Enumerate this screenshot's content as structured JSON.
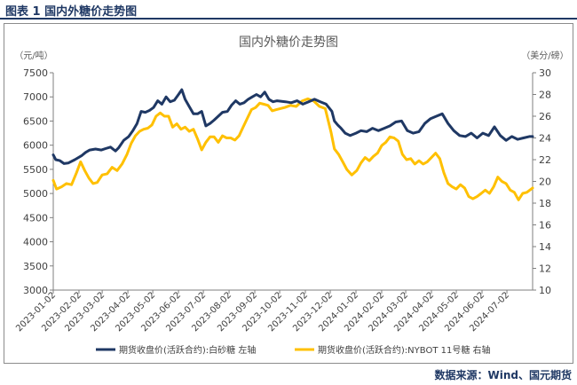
{
  "figure_label": "图表 1  国内外糖价走势图",
  "source": "数据来源：Wind、国元期货",
  "chart_data": {
    "type": "line",
    "title": "国内外糖价走势图",
    "left_axis": {
      "unit": "（元/吨）",
      "min": 3000,
      "max": 7500,
      "ticks": [
        3000,
        3500,
        4000,
        4500,
        5000,
        5500,
        6000,
        6500,
        7000,
        7500
      ]
    },
    "right_axis": {
      "unit": "（美分/磅）",
      "min": 10,
      "max": 30,
      "ticks": [
        10,
        12,
        14,
        16,
        18,
        20,
        22,
        24,
        26,
        28,
        30
      ]
    },
    "x_ticks": [
      "2023-01-02",
      "2023-02-02",
      "2023-03-02",
      "2023-04-02",
      "2023-05-02",
      "2023-06-02",
      "2023-07-02",
      "2023-08-02",
      "2023-09-02",
      "2023-10-02",
      "2023-11-02",
      "2023-12-02",
      "2024-01-02",
      "2024-02-02",
      "2024-03-02",
      "2024-04-02",
      "2024-05-02",
      "2024-06-02",
      "2024-07-02"
    ],
    "x_range": [
      "2023-01-02",
      "2024-08-02"
    ],
    "legend_position": "bottom",
    "series": [
      {
        "name": "期货收盘价(活跃合约):白砂糖 左轴",
        "axis": "left",
        "color": "#1f3864",
        "points": [
          [
            "2023-01-02",
            5800
          ],
          [
            "2023-01-05",
            5700
          ],
          [
            "2023-01-10",
            5680
          ],
          [
            "2023-01-15",
            5620
          ],
          [
            "2023-01-20",
            5630
          ],
          [
            "2023-01-28",
            5700
          ],
          [
            "2023-02-05",
            5780
          ],
          [
            "2023-02-10",
            5850
          ],
          [
            "2023-02-15",
            5900
          ],
          [
            "2023-02-22",
            5920
          ],
          [
            "2023-03-01",
            5900
          ],
          [
            "2023-03-06",
            5930
          ],
          [
            "2023-03-12",
            5960
          ],
          [
            "2023-03-18",
            5880
          ],
          [
            "2023-03-22",
            5950
          ],
          [
            "2023-03-28",
            6100
          ],
          [
            "2023-04-03",
            6180
          ],
          [
            "2023-04-08",
            6300
          ],
          [
            "2023-04-13",
            6450
          ],
          [
            "2023-04-18",
            6700
          ],
          [
            "2023-04-23",
            6680
          ],
          [
            "2023-04-28",
            6720
          ],
          [
            "2023-05-03",
            6780
          ],
          [
            "2023-05-08",
            6920
          ],
          [
            "2023-05-13",
            6850
          ],
          [
            "2023-05-18",
            7000
          ],
          [
            "2023-05-23",
            6900
          ],
          [
            "2023-05-28",
            6930
          ],
          [
            "2023-06-02",
            7050
          ],
          [
            "2023-06-06",
            7150
          ],
          [
            "2023-06-10",
            6950
          ],
          [
            "2023-06-15",
            6800
          ],
          [
            "2023-06-20",
            6650
          ],
          [
            "2023-06-25",
            6650
          ],
          [
            "2023-06-30",
            6700
          ],
          [
            "2023-07-05",
            6400
          ],
          [
            "2023-07-10",
            6450
          ],
          [
            "2023-07-15",
            6520
          ],
          [
            "2023-07-20",
            6600
          ],
          [
            "2023-07-25",
            6680
          ],
          [
            "2023-07-31",
            6700
          ],
          [
            "2023-08-05",
            6830
          ],
          [
            "2023-08-10",
            6920
          ],
          [
            "2023-08-15",
            6850
          ],
          [
            "2023-08-20",
            6880
          ],
          [
            "2023-08-25",
            6950
          ],
          [
            "2023-08-30",
            7000
          ],
          [
            "2023-09-04",
            7050
          ],
          [
            "2023-09-09",
            7000
          ],
          [
            "2023-09-14",
            7100
          ],
          [
            "2023-09-19",
            6950
          ],
          [
            "2023-09-24",
            6900
          ],
          [
            "2023-09-29",
            6920
          ],
          [
            "2023-10-09",
            6900
          ],
          [
            "2023-10-16",
            6880
          ],
          [
            "2023-10-23",
            6920
          ],
          [
            "2023-10-30",
            6850
          ],
          [
            "2023-11-06",
            6900
          ],
          [
            "2023-11-13",
            6950
          ],
          [
            "2023-11-20",
            6900
          ],
          [
            "2023-11-27",
            6850
          ],
          [
            "2023-12-04",
            6700
          ],
          [
            "2023-12-07",
            6500
          ],
          [
            "2023-12-11",
            6420
          ],
          [
            "2023-12-15",
            6350
          ],
          [
            "2023-12-20",
            6250
          ],
          [
            "2023-12-26",
            6200
          ],
          [
            "2024-01-02",
            6250
          ],
          [
            "2024-01-08",
            6300
          ],
          [
            "2024-01-15",
            6280
          ],
          [
            "2024-01-22",
            6350
          ],
          [
            "2024-01-29",
            6300
          ],
          [
            "2024-02-05",
            6350
          ],
          [
            "2024-02-12",
            6400
          ],
          [
            "2024-02-19",
            6480
          ],
          [
            "2024-02-26",
            6500
          ],
          [
            "2024-03-04",
            6300
          ],
          [
            "2024-03-11",
            6250
          ],
          [
            "2024-03-18",
            6280
          ],
          [
            "2024-03-25",
            6450
          ],
          [
            "2024-04-01",
            6550
          ],
          [
            "2024-04-08",
            6600
          ],
          [
            "2024-04-15",
            6650
          ],
          [
            "2024-04-22",
            6450
          ],
          [
            "2024-04-29",
            6300
          ],
          [
            "2024-05-06",
            6200
          ],
          [
            "2024-05-13",
            6180
          ],
          [
            "2024-05-20",
            6250
          ],
          [
            "2024-05-27",
            6150
          ],
          [
            "2024-06-03",
            6250
          ],
          [
            "2024-06-10",
            6200
          ],
          [
            "2024-06-17",
            6380
          ],
          [
            "2024-06-24",
            6200
          ],
          [
            "2024-07-01",
            6100
          ],
          [
            "2024-07-08",
            6180
          ],
          [
            "2024-07-15",
            6120
          ],
          [
            "2024-07-22",
            6150
          ],
          [
            "2024-07-29",
            6180
          ],
          [
            "2024-08-02",
            6180
          ]
        ]
      },
      {
        "name": "期货收盘价(活跃合约):NYBOT 11号糖 右轴",
        "axis": "right",
        "color": "#ffc000",
        "points": [
          [
            "2023-01-02",
            20.1
          ],
          [
            "2023-01-06",
            19.3
          ],
          [
            "2023-01-12",
            19.5
          ],
          [
            "2023-01-18",
            19.8
          ],
          [
            "2023-01-24",
            19.7
          ],
          [
            "2023-01-30",
            20.8
          ],
          [
            "2023-02-04",
            21.8
          ],
          [
            "2023-02-09",
            21.0
          ],
          [
            "2023-02-14",
            20.3
          ],
          [
            "2023-02-19",
            19.8
          ],
          [
            "2023-02-24",
            19.9
          ],
          [
            "2023-03-02",
            20.6
          ],
          [
            "2023-03-08",
            20.7
          ],
          [
            "2023-03-14",
            21.3
          ],
          [
            "2023-03-20",
            21.0
          ],
          [
            "2023-03-26",
            21.6
          ],
          [
            "2023-04-01",
            22.5
          ],
          [
            "2023-04-06",
            23.5
          ],
          [
            "2023-04-11",
            24.2
          ],
          [
            "2023-04-16",
            24.6
          ],
          [
            "2023-04-21",
            24.8
          ],
          [
            "2023-04-26",
            24.9
          ],
          [
            "2023-05-01",
            25.2
          ],
          [
            "2023-05-06",
            26.0
          ],
          [
            "2023-05-11",
            26.3
          ],
          [
            "2023-05-16",
            26.0
          ],
          [
            "2023-05-21",
            26.0
          ],
          [
            "2023-05-26",
            25.0
          ],
          [
            "2023-05-31",
            25.3
          ],
          [
            "2023-06-05",
            24.8
          ],
          [
            "2023-06-10",
            25.0
          ],
          [
            "2023-06-15",
            24.6
          ],
          [
            "2023-06-20",
            24.8
          ],
          [
            "2023-06-25",
            23.9
          ],
          [
            "2023-06-30",
            22.9
          ],
          [
            "2023-07-05",
            23.6
          ],
          [
            "2023-07-10",
            24.1
          ],
          [
            "2023-07-15",
            24.1
          ],
          [
            "2023-07-20",
            23.6
          ],
          [
            "2023-07-25",
            24.2
          ],
          [
            "2023-07-30",
            24.0
          ],
          [
            "2023-08-04",
            24.0
          ],
          [
            "2023-08-09",
            23.8
          ],
          [
            "2023-08-14",
            24.2
          ],
          [
            "2023-08-19",
            25.0
          ],
          [
            "2023-08-24",
            25.8
          ],
          [
            "2023-08-29",
            26.6
          ],
          [
            "2023-09-03",
            26.8
          ],
          [
            "2023-09-08",
            27.2
          ],
          [
            "2023-09-13",
            27.1
          ],
          [
            "2023-09-18",
            27.0
          ],
          [
            "2023-09-23",
            26.5
          ],
          [
            "2023-09-28",
            26.6
          ],
          [
            "2023-10-08",
            26.8
          ],
          [
            "2023-10-15",
            27.0
          ],
          [
            "2023-10-22",
            26.9
          ],
          [
            "2023-10-29",
            27.4
          ],
          [
            "2023-11-05",
            27.6
          ],
          [
            "2023-11-12",
            27.4
          ],
          [
            "2023-11-19",
            26.9
          ],
          [
            "2023-11-26",
            26.7
          ],
          [
            "2023-12-03",
            24.5
          ],
          [
            "2023-12-07",
            23.0
          ],
          [
            "2023-12-12",
            22.5
          ],
          [
            "2023-12-17",
            21.8
          ],
          [
            "2023-12-22",
            21.1
          ],
          [
            "2023-12-28",
            20.6
          ],
          [
            "2024-01-03",
            21.0
          ],
          [
            "2024-01-08",
            21.7
          ],
          [
            "2024-01-13",
            22.2
          ],
          [
            "2024-01-18",
            21.9
          ],
          [
            "2024-01-23",
            22.3
          ],
          [
            "2024-01-28",
            22.6
          ],
          [
            "2024-02-02",
            23.3
          ],
          [
            "2024-02-07",
            23.6
          ],
          [
            "2024-02-12",
            24.1
          ],
          [
            "2024-02-17",
            24.0
          ],
          [
            "2024-02-22",
            23.7
          ],
          [
            "2024-02-27",
            22.5
          ],
          [
            "2024-03-03",
            22.0
          ],
          [
            "2024-03-08",
            22.1
          ],
          [
            "2024-03-13",
            21.6
          ],
          [
            "2024-03-18",
            21.9
          ],
          [
            "2024-03-23",
            21.6
          ],
          [
            "2024-03-28",
            21.8
          ],
          [
            "2024-04-02",
            22.2
          ],
          [
            "2024-04-07",
            22.6
          ],
          [
            "2024-04-12",
            22.1
          ],
          [
            "2024-04-17",
            20.8
          ],
          [
            "2024-04-22",
            19.8
          ],
          [
            "2024-04-27",
            19.5
          ],
          [
            "2024-05-02",
            19.3
          ],
          [
            "2024-05-07",
            19.7
          ],
          [
            "2024-05-12",
            19.4
          ],
          [
            "2024-05-17",
            18.6
          ],
          [
            "2024-05-22",
            18.4
          ],
          [
            "2024-05-27",
            18.6
          ],
          [
            "2024-06-01",
            18.9
          ],
          [
            "2024-06-06",
            19.2
          ],
          [
            "2024-06-11",
            18.9
          ],
          [
            "2024-06-16",
            19.5
          ],
          [
            "2024-06-21",
            20.4
          ],
          [
            "2024-06-26",
            20.0
          ],
          [
            "2024-07-01",
            19.8
          ],
          [
            "2024-07-06",
            19.2
          ],
          [
            "2024-07-11",
            19.0
          ],
          [
            "2024-07-16",
            18.3
          ],
          [
            "2024-07-21",
            18.9
          ],
          [
            "2024-07-26",
            19.0
          ],
          [
            "2024-08-02",
            19.4
          ]
        ]
      }
    ]
  }
}
